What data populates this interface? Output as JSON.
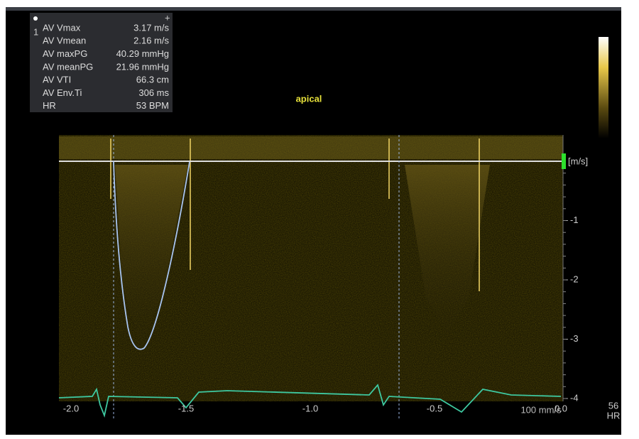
{
  "measurements": {
    "marker": "1",
    "rows": [
      [
        "AV Vmax",
        "3.17 m/s"
      ],
      [
        "AV Vmean",
        "2.16 m/s"
      ],
      [
        "AV maxPG",
        "40.29 mmHg"
      ],
      [
        "AV meanPG",
        "21.96 mmHg"
      ],
      [
        "AV VTI",
        "66.3 cm"
      ],
      [
        "AV Env.Ti",
        "306 ms"
      ],
      [
        "HR",
        "53 BPM"
      ]
    ]
  },
  "label": "apical",
  "velocity_axis": {
    "unit": "[m/s]",
    "ticks": [
      "-1",
      "-2",
      "-3",
      "-4"
    ]
  },
  "time_axis": {
    "ticks": [
      "-2.0",
      "-1.5",
      "-1.0",
      "-0.5",
      "0.0"
    ]
  },
  "sweep_speed": "100 mm/s",
  "heart_rate": {
    "value": "56",
    "label": "HR"
  }
}
